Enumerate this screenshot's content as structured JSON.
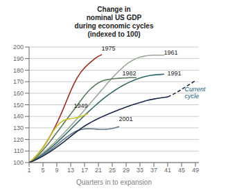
{
  "chart_data": {
    "type": "line",
    "title": "Change in\nnominal US GDP\nduring economic cycles\n(indexed to 100)",
    "x_label": "Quarters in to expansion",
    "xlim": [
      1,
      50
    ],
    "ylim": [
      100,
      200
    ],
    "xticks": [
      1,
      5,
      9,
      13,
      17,
      21,
      25,
      29,
      33,
      37,
      41,
      45,
      49
    ],
    "yticks": [
      100,
      110,
      120,
      130,
      140,
      150,
      160,
      170,
      180,
      190,
      200
    ],
    "grid": true,
    "series": [
      {
        "color": "#9aaa98",
        "x": [
          1,
          2,
          3,
          4,
          5,
          6,
          7,
          8,
          9,
          10,
          11,
          12,
          13,
          14,
          15,
          16,
          17,
          18,
          19,
          20,
          21,
          22,
          23,
          24,
          25,
          26,
          27,
          28,
          29,
          30,
          31,
          32,
          33,
          34,
          35,
          36,
          37,
          38,
          39,
          40
        ],
        "values": [
          100,
          101.8,
          103.8,
          106.0,
          108.3,
          110.8,
          113.5,
          116.3,
          119.2,
          122.2,
          125.3,
          128.5,
          131.8,
          135.1,
          138.5,
          142.0,
          145.5,
          149.0,
          152.5,
          156.0,
          159.5,
          163.0,
          166.5,
          170.0,
          173.3,
          176.5,
          179.5,
          182.3,
          184.8,
          187.0,
          188.8,
          190.2,
          191.3,
          192.0,
          192.5,
          192.8,
          193.0,
          193.0,
          193.0,
          193.0
        ]
      },
      {
        "color": "#9b2c1a",
        "x": [
          1,
          2,
          3,
          4,
          5,
          6,
          7,
          8,
          9,
          10,
          11,
          12,
          13,
          14,
          15,
          16,
          17,
          18,
          19,
          20,
          21,
          22
        ],
        "values": [
          100,
          102.5,
          105.5,
          109.0,
          113.0,
          117.5,
          122.5,
          128.0,
          134.0,
          140.5,
          147.5,
          154.8,
          162.0,
          168.5,
          174.0,
          178.5,
          182.0,
          185.0,
          187.5,
          190.0,
          192.0,
          193.5
        ]
      },
      {
        "color": "#5a7a5a",
        "x": [
          1,
          2,
          3,
          4,
          5,
          6,
          7,
          8,
          9,
          10,
          11,
          12,
          13,
          14,
          15,
          16,
          17,
          18,
          19,
          20,
          21,
          22,
          23,
          24,
          25,
          26,
          27,
          28,
          29,
          30,
          31,
          32
        ],
        "values": [
          100,
          102.0,
          104.5,
          107.5,
          110.8,
          114.3,
          118.0,
          122.0,
          126.0,
          130.0,
          134.0,
          138.0,
          142.0,
          146.0,
          150.0,
          154.0,
          158.0,
          161.5,
          164.5,
          167.0,
          169.0,
          170.5,
          171.5,
          172.0,
          172.5,
          172.8,
          173.0,
          173.2,
          173.3,
          173.5,
          173.5,
          173.5
        ]
      },
      {
        "color": "#336666",
        "x": [
          1,
          2,
          3,
          4,
          5,
          6,
          7,
          8,
          9,
          10,
          11,
          12,
          13,
          14,
          15,
          16,
          17,
          18,
          19,
          20,
          21,
          22,
          23,
          24,
          25,
          26,
          27,
          28,
          29,
          30,
          31,
          32,
          33,
          34,
          35,
          36,
          37,
          38,
          39,
          40
        ],
        "values": [
          100,
          101.5,
          103.2,
          105.2,
          107.3,
          109.6,
          112.0,
          114.6,
          117.3,
          120.1,
          123.0,
          125.9,
          128.9,
          131.9,
          134.9,
          137.9,
          140.8,
          143.6,
          146.4,
          149.1,
          151.7,
          154.2,
          156.6,
          158.9,
          161.0,
          163.0,
          164.9,
          166.6,
          168.2,
          169.7,
          171.0,
          172.2,
          173.2,
          174.1,
          174.8,
          175.4,
          175.8,
          176.1,
          176.3,
          176.5
        ]
      },
      {
        "color": "#c8c020",
        "x": [
          1,
          2,
          3,
          4,
          5,
          6,
          7,
          8,
          9,
          10,
          11,
          12,
          13,
          14,
          15,
          16,
          17,
          18
        ],
        "values": [
          100,
          102.5,
          105.5,
          109.0,
          113.0,
          117.5,
          122.5,
          127.5,
          131.5,
          134.5,
          136.5,
          137.5,
          138.0,
          138.5,
          139.0,
          139.8,
          141.0,
          142.5
        ]
      },
      {
        "color": "#607888",
        "x": [
          1,
          2,
          3,
          4,
          5,
          6,
          7,
          8,
          9,
          10,
          11,
          12,
          13,
          14,
          15,
          16,
          17,
          18,
          19,
          20,
          21,
          22,
          23,
          24,
          25,
          26,
          27
        ],
        "values": [
          100,
          101.2,
          102.6,
          104.3,
          106.2,
          108.3,
          110.5,
          112.8,
          115.2,
          117.7,
          120.1,
          122.4,
          124.5,
          126.3,
          127.7,
          128.6,
          129.1,
          129.3,
          129.2,
          129.0,
          128.8,
          128.7,
          128.8,
          129.0,
          129.5,
          130.2,
          131.2
        ]
      },
      {
        "color": "#192844",
        "x": [
          1,
          2,
          3,
          4,
          5,
          6,
          7,
          8,
          9,
          10,
          11,
          12,
          13,
          14,
          15,
          16,
          17,
          18,
          19,
          20,
          21,
          22,
          23,
          24,
          25,
          26,
          27,
          28,
          29,
          30,
          31,
          32,
          33,
          34,
          35,
          36,
          37,
          38,
          39,
          40,
          41
        ],
        "values": [
          100,
          101.2,
          102.5,
          104.0,
          105.6,
          107.4,
          109.3,
          111.3,
          113.4,
          115.6,
          117.9,
          120.3,
          122.7,
          125.1,
          127.4,
          129.6,
          131.6,
          133.4,
          135.1,
          136.7,
          138.2,
          139.6,
          140.9,
          142.2,
          143.4,
          144.6,
          145.8,
          146.9,
          148.0,
          149.1,
          150.1,
          151.1,
          152.0,
          152.9,
          153.7,
          154.4,
          155.0,
          155.5,
          156.0,
          156.4,
          156.8
        ]
      },
      {
        "color": "#192844",
        "line_style": "dashed",
        "x": [
          41,
          42,
          43,
          44,
          45,
          46,
          47,
          48,
          49
        ],
        "values": [
          156.8,
          158.2,
          159.8,
          161.5,
          163.3,
          165.2,
          167.1,
          169.0,
          171.0
        ]
      }
    ],
    "annotations": [
      {
        "text": "1961",
        "x": 39.5,
        "y": 192
      },
      {
        "text": "1975",
        "x": 21.5,
        "y": 196
      },
      {
        "text": "1982",
        "x": 27.5,
        "y": 174
      },
      {
        "text": "1991",
        "x": 40.5,
        "y": 174
      },
      {
        "text": "1949",
        "x": 13.5,
        "y": 146
      },
      {
        "text": "2001",
        "x": 26.5,
        "y": 135
      },
      {
        "text": "Current\ncycle",
        "x": 45.5,
        "y": 160
      }
    ]
  }
}
